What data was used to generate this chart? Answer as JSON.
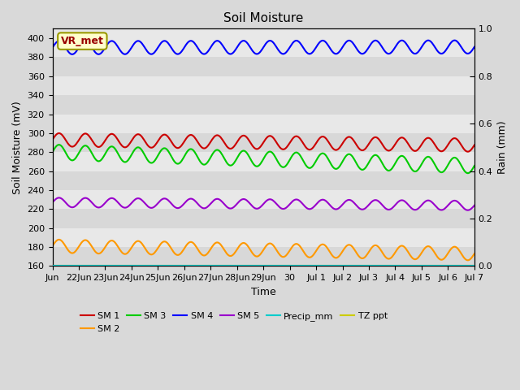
{
  "title": "Soil Moisture",
  "xlabel": "Time",
  "ylabel_left": "Soil Moisture (mV)",
  "ylabel_right": "Rain (mm)",
  "ylim_left": [
    160,
    410
  ],
  "ylim_right": [
    0.0,
    1.0
  ],
  "yticks_left": [
    160,
    180,
    200,
    220,
    240,
    260,
    280,
    300,
    320,
    340,
    360,
    380,
    400
  ],
  "yticks_right": [
    0.0,
    0.2,
    0.4,
    0.6,
    0.8,
    1.0
  ],
  "annotation_text": "VR_met",
  "annotation_bgcolor": "#ffffcc",
  "annotation_edgecolor": "#999900",
  "annotation_textcolor": "#990000",
  "fig_facecolor": "#d9d9d9",
  "plot_facecolor": "#e8e8e8",
  "band_colors": [
    "#e0e0e0",
    "#d0d0d0"
  ],
  "series": [
    {
      "name": "SM 1",
      "color": "#cc0000",
      "base": 293,
      "amplitude": 7,
      "trend": -0.35,
      "period": 1.0,
      "axis": "left"
    },
    {
      "name": "SM 2",
      "color": "#ff9900",
      "base": 181,
      "amplitude": 7,
      "trend": -0.5,
      "period": 1.0,
      "axis": "left"
    },
    {
      "name": "SM 3",
      "color": "#00cc00",
      "base": 280,
      "amplitude": 8,
      "trend": -0.9,
      "period": 1.0,
      "axis": "left"
    },
    {
      "name": "SM 4",
      "color": "#0000ff",
      "base": 390,
      "amplitude": 7,
      "trend": 0.05,
      "period": 1.0,
      "axis": "left"
    },
    {
      "name": "SM 5",
      "color": "#9900cc",
      "base": 227,
      "amplitude": 5,
      "trend": -0.2,
      "period": 1.0,
      "axis": "left"
    },
    {
      "name": "Precip_mm",
      "color": "#00cccc",
      "base": 0.0,
      "amplitude": 0,
      "trend": 0,
      "period": 1.0,
      "axis": "right"
    },
    {
      "name": "TZ ppt",
      "color": "#cccc00",
      "base": 160,
      "amplitude": 0,
      "trend": 0,
      "period": 1.0,
      "axis": "left"
    }
  ],
  "tick_labels": [
    "Jun",
    "22Jun",
    "23Jun",
    "24Jun",
    "25Jun",
    "26Jun",
    "27Jun",
    "28Jun",
    "29Jun",
    "30",
    "Jul 1",
    "Jul 2",
    "Jul 3",
    "Jul 4",
    "Jul 5",
    "Jul 6",
    "Jul 7"
  ],
  "tick_positions": [
    0,
    1,
    2,
    3,
    4,
    5,
    6,
    7,
    8,
    9,
    10,
    11,
    12,
    13,
    14,
    15,
    16
  ],
  "num_days": 16,
  "num_points": 500,
  "linewidth": 1.5,
  "title_fontsize": 11,
  "label_fontsize": 9,
  "tick_fontsize": 8,
  "legend_fontsize": 8
}
